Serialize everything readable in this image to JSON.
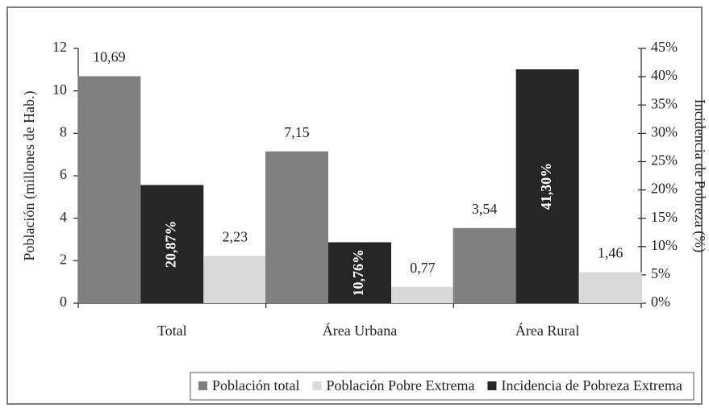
{
  "chart_data": {
    "type": "bar",
    "categories": [
      "Total",
      "Área Urbana",
      "Área Rural"
    ],
    "y_label": "Población (millones de Hab.)",
    "y2_label": "Incidencia de Pobreza (%)",
    "ylim": [
      0,
      12
    ],
    "yticks": [
      0,
      2,
      4,
      6,
      8,
      10,
      12
    ],
    "y2lim": [
      0,
      45
    ],
    "y2ticks": [
      {
        "value": 0,
        "label": "0%"
      },
      {
        "value": 5,
        "label": "5%"
      },
      {
        "value": 10,
        "label": "10%"
      },
      {
        "value": 15,
        "label": "15%"
      },
      {
        "value": 20,
        "label": "20%"
      },
      {
        "value": 25,
        "label": "25%"
      },
      {
        "value": 30,
        "label": "30%"
      },
      {
        "value": 35,
        "label": "35%"
      },
      {
        "value": 40,
        "label": "40%"
      },
      {
        "value": 45,
        "label": "45%"
      }
    ],
    "series": [
      {
        "name": "Población total",
        "color": "#808080",
        "values": [
          10.69,
          7.15,
          3.54
        ],
        "value_labels": [
          "10,69",
          "7,15",
          "3,54"
        ]
      },
      {
        "name": "Población Pobre Extrema",
        "color": "#d9d9d9",
        "values": [
          2.23,
          0.77,
          1.46
        ],
        "value_labels": [
          "2,23",
          "0,77",
          "1,46"
        ]
      },
      {
        "name": "Incidencia de Pobreza Extrema",
        "color": "#262626",
        "axis": "y2",
        "values": [
          20.87,
          10.76,
          41.3
        ],
        "value_labels": [
          "20,87%",
          "10,76%",
          "41,30%"
        ]
      }
    ],
    "legend": "bottom"
  }
}
